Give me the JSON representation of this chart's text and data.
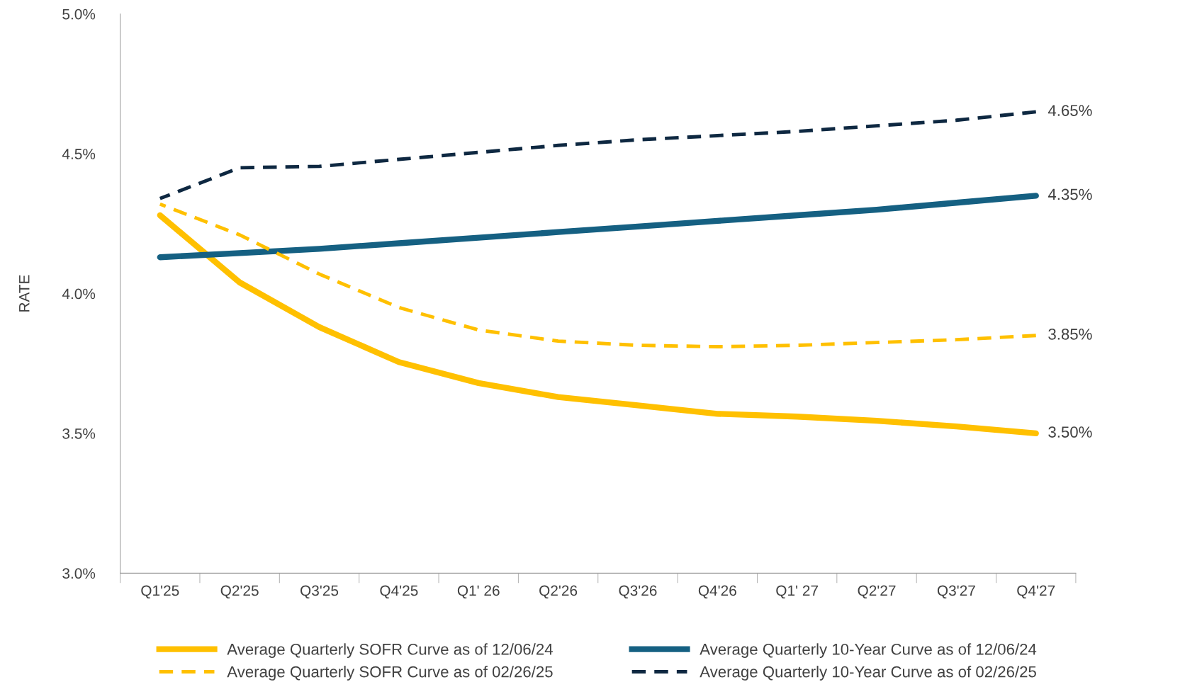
{
  "chart_data": {
    "type": "line",
    "ylabel": "RATE",
    "categories": [
      "Q1'25",
      "Q2'25",
      "Q3'25",
      "Q4'25",
      "Q1' 26",
      "Q2'26",
      "Q3'26",
      "Q4'26",
      "Q1' 27",
      "Q2'27",
      "Q3'27",
      "Q4'27"
    ],
    "series": [
      {
        "name": "Average Quarterly SOFR Curve as of 12/06/24",
        "color": "#ffc000",
        "line_style": "solid",
        "values": [
          4.28,
          4.04,
          3.88,
          3.755,
          3.68,
          3.63,
          3.6,
          3.57,
          3.56,
          3.545,
          3.525,
          3.5
        ]
      },
      {
        "name": "Average Quarterly 10-Year Curve as of 12/06/24",
        "color": "#156082",
        "line_style": "solid",
        "values": [
          4.13,
          4.145,
          4.16,
          4.18,
          4.2,
          4.22,
          4.24,
          4.26,
          4.28,
          4.3,
          4.325,
          4.35
        ]
      },
      {
        "name": "Average Quarterly SOFR Curve as of 02/26/25",
        "color": "#ffc000",
        "line_style": "dashed",
        "values": [
          4.32,
          4.21,
          4.07,
          3.95,
          3.87,
          3.83,
          3.815,
          3.81,
          3.815,
          3.825,
          3.835,
          3.85
        ]
      },
      {
        "name": "Average Quarterly 10-Year Curve as of 02/26/25",
        "color": "#0e2841",
        "line_style": "dashed",
        "values": [
          4.34,
          4.45,
          4.455,
          4.48,
          4.505,
          4.53,
          4.55,
          4.565,
          4.58,
          4.6,
          4.62,
          4.65
        ]
      }
    ],
    "ylim": [
      3.0,
      5.0
    ],
    "yticks": [
      {
        "value": 3.0,
        "label": "3.0%"
      },
      {
        "value": 3.5,
        "label": "3.5%"
      },
      {
        "value": 4.0,
        "label": "4.0%"
      },
      {
        "value": 4.5,
        "label": "4.5%"
      },
      {
        "value": 5.0,
        "label": "5.0%"
      }
    ],
    "annotations": [
      {
        "text": "4.65%",
        "x": "Q4'27",
        "y": 4.65
      },
      {
        "text": "4.35%",
        "x": "Q4'27",
        "y": 4.35
      },
      {
        "text": "3.85%",
        "x": "Q4'27",
        "y": 3.85
      },
      {
        "text": "3.50%",
        "x": "Q4'27",
        "y": 3.5
      }
    ],
    "grid": false,
    "legend": "bottom",
    "marker": "none"
  }
}
